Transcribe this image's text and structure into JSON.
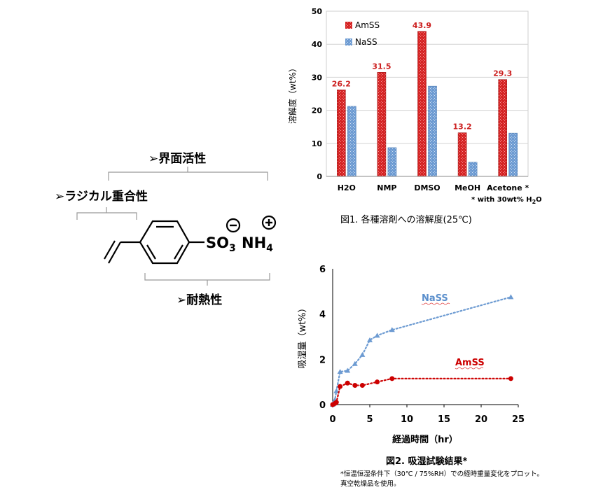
{
  "structure": {
    "label_interface": "➢界面活性",
    "label_radical": "➢ラジカル重合性",
    "label_heat": "➢耐熱性",
    "so3": "SO",
    "so3_sub": "3",
    "nh4": "NH",
    "nh4_sub": "4",
    "minus": "−",
    "plus": "+"
  },
  "chart_data": [
    {
      "type": "bar",
      "categories": [
        "H2O",
        "NMP",
        "DMSO",
        "MeOH",
        "Acetone *"
      ],
      "series": [
        {
          "name": "AmSS",
          "values": [
            26.2,
            31.5,
            43.9,
            13.2,
            29.3
          ],
          "labels": [
            "26.2",
            "31.5",
            "43.9",
            "13.2",
            "29.3"
          ],
          "color": "#d42424"
        },
        {
          "name": "NaSS",
          "values": [
            21.2,
            8.7,
            27.3,
            4.3,
            13.1
          ],
          "color": "#6d9bd2"
        }
      ],
      "ylabel": "溶解度（wt%）",
      "ylim": [
        0,
        50
      ],
      "yticks": [
        "0",
        "10",
        "20",
        "30",
        "40",
        "50"
      ],
      "footnote": "* with 30wt% H",
      "footnote_sub": "2",
      "footnote_end": "O",
      "caption": "図1. 各種溶剤への溶解度(25℃)",
      "legend_position": "top-left"
    },
    {
      "type": "scatter",
      "series": [
        {
          "name": "NaSS",
          "x": [
            0,
            0.3,
            0.5,
            1,
            2,
            3,
            4,
            5,
            6,
            8,
            24
          ],
          "y": [
            0,
            0.2,
            0.6,
            1.45,
            1.5,
            1.8,
            2.2,
            2.85,
            3.05,
            3.3,
            4.75
          ],
          "color": "#6d9bd2"
        },
        {
          "name": "AmSS",
          "x": [
            0,
            0.3,
            0.5,
            1,
            2,
            3,
            4,
            6,
            8,
            24
          ],
          "y": [
            0,
            0.05,
            0.1,
            0.8,
            0.95,
            0.85,
            0.85,
            1.0,
            1.15,
            1.15
          ],
          "color": "#cc0000"
        }
      ],
      "xlabel": "経過時間（hr）",
      "ylabel": "吸湿量（wt%）",
      "xlim": [
        0,
        25
      ],
      "ylim": [
        0,
        6
      ],
      "xticks": [
        "0",
        "5",
        "10",
        "15",
        "20",
        "25"
      ],
      "yticks": [
        "0",
        "2",
        "4",
        "6"
      ],
      "caption": "図2. 吸湿試験結果*",
      "note_line1": "*恒温恒湿条件下（30℃ / 75%RH）での経時重量変化をプロット。",
      "note_line2": "真空乾燥品を使用。"
    }
  ]
}
